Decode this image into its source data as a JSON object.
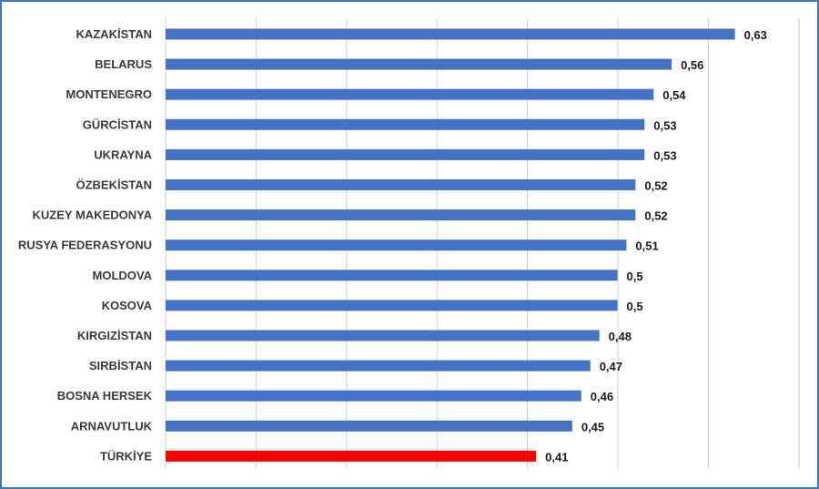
{
  "chart_data": {
    "type": "bar",
    "orientation": "horizontal",
    "categories": [
      "KAZAKİSTAN",
      "BELARUS",
      "MONTENEGRO",
      "GÜRCİSTAN",
      "UKRAYNA",
      "ÖZBEKİSTAN",
      "KUZEY MAKEDONYA",
      "RUSYA FEDERASYONU",
      "MOLDOVA",
      "KOSOVA",
      "KIRGIZİSTAN",
      "SIRBİSTAN",
      "BOSNA HERSEK",
      "ARNAVUTLUK",
      "TÜRKİYE"
    ],
    "values": [
      0.63,
      0.56,
      0.54,
      0.53,
      0.53,
      0.52,
      0.52,
      0.51,
      0.5,
      0.5,
      0.48,
      0.47,
      0.46,
      0.45,
      0.41
    ],
    "value_labels": [
      "0,63",
      "0,56",
      "0,54",
      "0,53",
      "0,53",
      "0,52",
      "0,52",
      "0,51",
      "0,5",
      "0,5",
      "0,48",
      "0,47",
      "0,46",
      "0,45",
      "0,41"
    ],
    "colors": {
      "default": "#4472C4",
      "highlight": "#FF0000",
      "highlight_category": "TÜRKİYE",
      "gridline": "#d0d0d0",
      "border": "#4472C4"
    },
    "xlim": [
      0,
      0.7
    ],
    "grid": true,
    "title": "",
    "xlabel": "",
    "ylabel": ""
  }
}
